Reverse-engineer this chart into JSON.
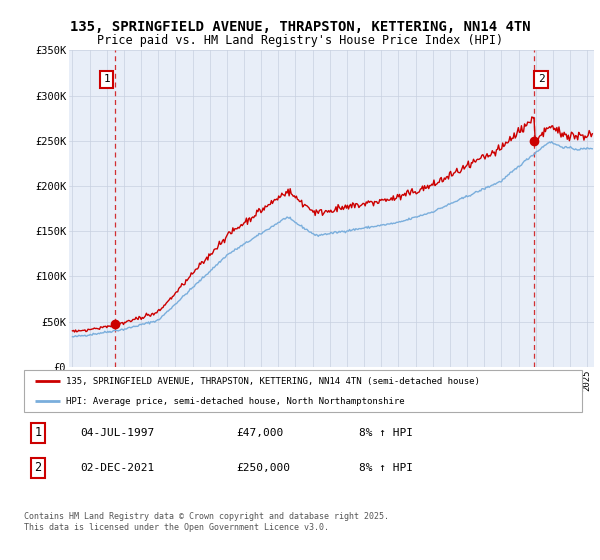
{
  "title": "135, SPRINGFIELD AVENUE, THRAPSTON, KETTERING, NN14 4TN",
  "subtitle": "Price paid vs. HM Land Registry's House Price Index (HPI)",
  "legend_line1": "135, SPRINGFIELD AVENUE, THRAPSTON, KETTERING, NN14 4TN (semi-detached house)",
  "legend_line2": "HPI: Average price, semi-detached house, North Northamptonshire",
  "annotation1_date": "04-JUL-1997",
  "annotation1_price": "£47,000",
  "annotation1_hpi": "8% ↑ HPI",
  "annotation2_date": "02-DEC-2021",
  "annotation2_price": "£250,000",
  "annotation2_hpi": "8% ↑ HPI",
  "footer": "Contains HM Land Registry data © Crown copyright and database right 2025.\nThis data is licensed under the Open Government Licence v3.0.",
  "sale1_x": 1997.5,
  "sale1_y": 47000,
  "sale2_x": 2021.92,
  "sale2_y": 250000,
  "ylim": [
    0,
    350000
  ],
  "xlim": [
    1994.8,
    2025.4
  ],
  "bg_color": "#E8EEF8",
  "line_color_red": "#CC0000",
  "line_color_blue": "#7AAEDC",
  "grid_color": "#C8D0E0",
  "title_fontsize": 10,
  "subtitle_fontsize": 8.5
}
